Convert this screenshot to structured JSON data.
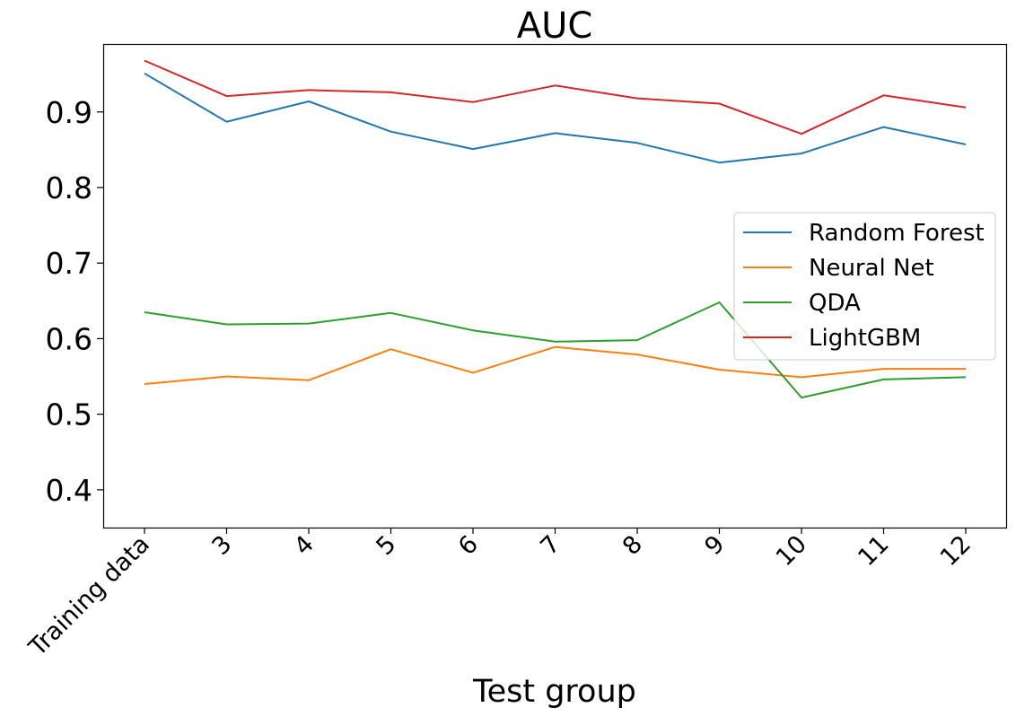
{
  "chart_data": {
    "type": "line",
    "title": "AUC",
    "xlabel": "Test group",
    "ylabel": "",
    "categories": [
      "Training data",
      "3",
      "4",
      "5",
      "6",
      "7",
      "8",
      "9",
      "10",
      "11",
      "12"
    ],
    "ylim": [
      0.35,
      0.99
    ],
    "yticks": [
      0.4,
      0.5,
      0.6,
      0.7,
      0.8,
      0.9
    ],
    "ytick_labels": [
      "0.4",
      "0.5",
      "0.6",
      "0.7",
      "0.8",
      "0.9"
    ],
    "grid": false,
    "legend_position": "center-right",
    "series": [
      {
        "name": "Random Forest",
        "color": "#1f77b4",
        "values": [
          0.951,
          0.887,
          0.914,
          0.874,
          0.851,
          0.872,
          0.859,
          0.833,
          0.845,
          0.88,
          0.857
        ]
      },
      {
        "name": "Neural Net",
        "color": "#ff7f0e",
        "values": [
          0.54,
          0.55,
          0.545,
          0.586,
          0.555,
          0.589,
          0.579,
          0.559,
          0.549,
          0.56,
          0.56
        ]
      },
      {
        "name": "QDA",
        "color": "#2ca02c",
        "values": [
          0.635,
          0.619,
          0.62,
          0.634,
          0.611,
          0.596,
          0.598,
          0.648,
          0.522,
          0.546,
          0.549
        ]
      },
      {
        "name": "LightGBM",
        "color": "#d62728",
        "values": [
          0.968,
          0.921,
          0.929,
          0.926,
          0.913,
          0.935,
          0.918,
          0.911,
          0.871,
          0.922,
          0.906
        ]
      }
    ]
  }
}
